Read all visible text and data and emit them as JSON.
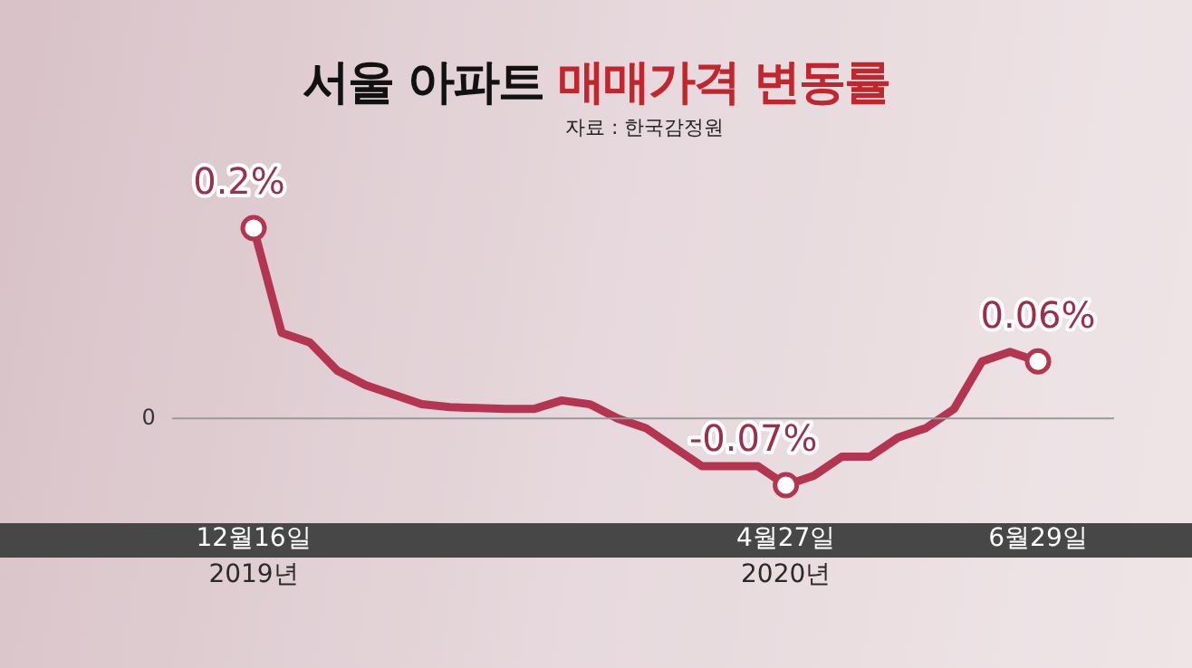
{
  "chart_data": {
    "type": "line",
    "title": "서울 아파트 매매가격 변동률",
    "annotations": [
      "자료 : 한국감정원"
    ],
    "categories": [
      "12월16일\n2019년",
      null,
      null,
      null,
      null,
      null,
      null,
      null,
      null,
      null,
      null,
      null,
      null,
      null,
      null,
      null,
      null,
      null,
      null,
      "4월27일\n2020년",
      null,
      null,
      null,
      null,
      null,
      null,
      null,
      null,
      "6월29일"
    ],
    "series": [
      {
        "color": "#b3354f",
        "values": [
          0.2,
          0.09,
          0.08,
          0.05,
          0.035,
          0.025,
          0.015,
          0.012,
          0.011,
          0.01,
          0.01,
          0.019,
          0.015,
          0.0,
          -0.01,
          -0.03,
          -0.05,
          -0.05,
          -0.05,
          -0.07,
          -0.06,
          -0.04,
          -0.04,
          -0.02,
          -0.01,
          0.01,
          0.06,
          0.07,
          0.06
        ],
        "value_labels": [
          "0.2%",
          null,
          null,
          null,
          null,
          null,
          null,
          null,
          null,
          null,
          null,
          null,
          null,
          null,
          null,
          null,
          null,
          null,
          null,
          "-0.07%",
          null,
          null,
          null,
          null,
          null,
          null,
          null,
          null,
          "0.06%"
        ]
      }
    ],
    "ref_lines": [
      {
        "axis": "y",
        "value": 0,
        "label": "0",
        "color": "#9a9a9a"
      }
    ],
    "legend": false
  }
}
